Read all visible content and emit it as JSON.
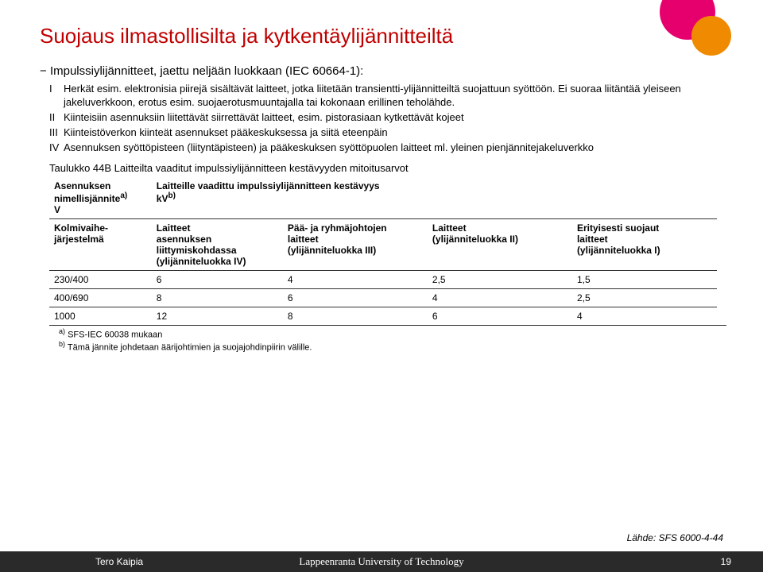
{
  "title": "Suojaus ilmastollisilta ja kytkentäylijännitteiltä",
  "intro_prefix": "−",
  "intro": "Impulssiylijännitteet, jaettu neljään luokkaan (IEC 60664-1):",
  "classes": [
    {
      "roman": "I",
      "text": "Herkät esim. elektronisia piirejä sisältävät laitteet, jotka liitetään transientti-ylijännitteiltä suojattuun syöttöön. Ei suoraa liitäntää yleiseen jakeluverkkoon, erotus esim. suojaerotusmuuntajalla tai kokonaan erillinen teholähde."
    },
    {
      "roman": "II",
      "text": "Kiinteisiin asennuksiin liitettävät siirrettävät laitteet, esim. pistorasiaan kytkettävät kojeet"
    },
    {
      "roman": "III",
      "text": "Kiinteistöverkon kiinteät asennukset pääkeskuksessa ja siitä eteenpäin"
    },
    {
      "roman": "IV",
      "text": "Asennuksen syöttöpisteen (liityntäpisteen) ja pääkeskuksen syöttöpuolen laitteet ml. yleinen pienjännitejakeluverkko"
    }
  ],
  "table": {
    "caption": "Taulukko 44B  Laitteilta vaaditut impulssiylijännitteen kestävyyden mitoitusarvot",
    "header_col0_line1": "Asennuksen",
    "header_col0_line2": "nimellisjännite",
    "header_col0_sup": "a)",
    "header_col0_unit": "V",
    "header_span_line1": "Laitteille vaadittu impulssiylijännitteen kestävyys",
    "header_span_line2": "kV",
    "header_span_sup": "b)",
    "sub_row0": "Kolmivaihe-\njärjestelmä",
    "sub_cols": [
      "Laitteet\nasennuksen\nliittymiskohdassa\n(ylijänniteluokka IV)",
      "Pää- ja ryhmäjohtojen\nlaitteet\n(ylijänniteluokka III)",
      "Laitteet\n(ylijänniteluokka II)",
      "Erityisesti suojaut\nlaitteet\n(ylijänniteluokka I)"
    ],
    "rows": [
      [
        "230/400",
        "6",
        "4",
        "2,5",
        "1,5"
      ],
      [
        "400/690",
        "8",
        "6",
        "4",
        "2,5"
      ],
      [
        "1000",
        "12",
        "8",
        "6",
        "4"
      ]
    ],
    "footnote_a": "SFS-IEC 60038 mukaan",
    "footnote_b": "Tämä jännite johdetaan äärijohtimien ja suojajohdinpiirin välille."
  },
  "source": "Lähde: SFS 6000-4-44",
  "footer": {
    "author": "Tero Kaipia",
    "university": "Lappeenranta University of Technology",
    "page": "19"
  },
  "colors": {
    "title": "#c00000",
    "dark": "#2a2a2a",
    "pink": "#e6006e",
    "orange": "#f08a00"
  }
}
